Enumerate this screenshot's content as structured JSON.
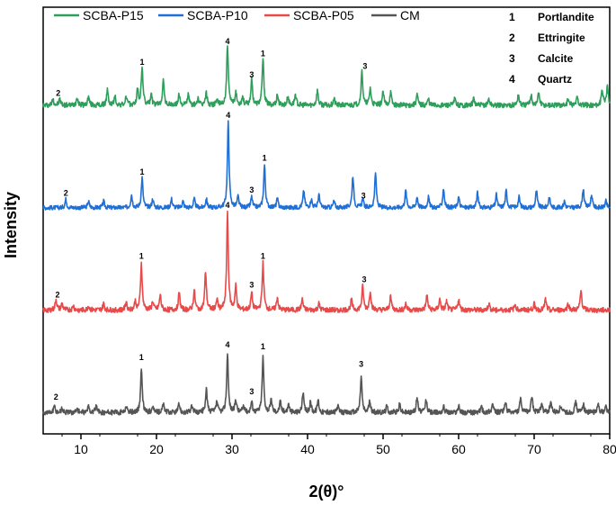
{
  "chart_data": {
    "type": "line",
    "xlabel": "2(θ)°",
    "ylabel": "Intensity",
    "xlim": [
      5,
      80
    ],
    "xticks": [
      10,
      20,
      30,
      40,
      50,
      60,
      70,
      80
    ],
    "ylim": [
      0,
      100
    ],
    "y_tick_labels_shown": false,
    "grid": false,
    "legend_position": "top-left",
    "phase_key": [
      {
        "number": "1",
        "name": "Portlandite"
      },
      {
        "number": "2",
        "name": "Ettringite"
      },
      {
        "number": "3",
        "name": "Calcite"
      },
      {
        "number": "4",
        "name": "Quartz"
      }
    ],
    "series": [
      {
        "name": "SCBA-P15",
        "color": "#2e9e5b",
        "baseline": 77,
        "noise": 0.6,
        "peaks": [
          [
            6.3,
            1.5
          ],
          [
            7.2,
            1.5
          ],
          [
            9.5,
            2.0
          ],
          [
            11.0,
            2.0
          ],
          [
            13.5,
            3.5
          ],
          [
            14.5,
            2.0
          ],
          [
            16.0,
            2.0
          ],
          [
            17.5,
            3.5
          ],
          [
            18.1,
            9.0
          ],
          [
            19.3,
            2.5
          ],
          [
            20.9,
            6.0
          ],
          [
            23.0,
            2.5
          ],
          [
            24.2,
            2.5
          ],
          [
            25.5,
            1.5
          ],
          [
            26.6,
            3.0
          ],
          [
            28.0,
            1.5
          ],
          [
            29.4,
            14.0
          ],
          [
            30.5,
            3.0
          ],
          [
            31.4,
            2.0
          ],
          [
            32.6,
            6.0
          ],
          [
            34.1,
            11.0
          ],
          [
            36.0,
            2.5
          ],
          [
            37.4,
            2.0
          ],
          [
            38.4,
            2.5
          ],
          [
            41.3,
            3.5
          ],
          [
            43.5,
            1.5
          ],
          [
            47.2,
            8.0
          ],
          [
            48.3,
            4.0
          ],
          [
            50.0,
            3.0
          ],
          [
            51.0,
            3.0
          ],
          [
            54.5,
            2.5
          ],
          [
            56.0,
            1.5
          ],
          [
            59.5,
            1.5
          ],
          [
            62.0,
            1.5
          ],
          [
            64.0,
            1.5
          ],
          [
            67.9,
            2.5
          ],
          [
            69.6,
            2.5
          ],
          [
            70.6,
            3.0
          ],
          [
            74.5,
            1.5
          ],
          [
            75.7,
            2.0
          ],
          [
            79.0,
            3.5
          ],
          [
            79.7,
            5.0
          ]
        ],
        "labels": [
          {
            "x": 7.0,
            "y": 79.2,
            "text": "2"
          },
          {
            "x": 18.1,
            "y": 86.5,
            "text": "1"
          },
          {
            "x": 29.4,
            "y": 91.3,
            "text": "4"
          },
          {
            "x": 32.6,
            "y": 83.5,
            "text": "3"
          },
          {
            "x": 34.1,
            "y": 88.5,
            "text": "1"
          },
          {
            "x": 47.6,
            "y": 85.5,
            "text": "3"
          }
        ]
      },
      {
        "name": "SCBA-P10",
        "color": "#1f6fd6",
        "baseline": 53,
        "noise": 0.5,
        "peaks": [
          [
            8.0,
            2.0
          ],
          [
            11.0,
            1.5
          ],
          [
            13.0,
            1.5
          ],
          [
            16.7,
            3.0
          ],
          [
            18.1,
            7.0
          ],
          [
            19.5,
            2.0
          ],
          [
            22.0,
            2.0
          ],
          [
            23.5,
            1.5
          ],
          [
            25.0,
            2.0
          ],
          [
            26.6,
            2.0
          ],
          [
            29.5,
            20.0
          ],
          [
            30.8,
            2.5
          ],
          [
            32.6,
            2.5
          ],
          [
            34.3,
            10.0
          ],
          [
            36.0,
            2.0
          ],
          [
            39.5,
            4.0
          ],
          [
            40.5,
            2.0
          ],
          [
            41.5,
            3.0
          ],
          [
            43.5,
            1.5
          ],
          [
            46.0,
            7.5
          ],
          [
            47.3,
            2.0
          ],
          [
            49.0,
            8.0
          ],
          [
            53.0,
            4.0
          ],
          [
            54.5,
            2.5
          ],
          [
            56.0,
            2.5
          ],
          [
            58.0,
            4.5
          ],
          [
            60.0,
            2.5
          ],
          [
            62.5,
            3.5
          ],
          [
            65.0,
            3.0
          ],
          [
            66.3,
            4.0
          ],
          [
            68.0,
            2.5
          ],
          [
            70.3,
            4.0
          ],
          [
            72.0,
            2.5
          ],
          [
            74.0,
            1.5
          ],
          [
            76.5,
            4.5
          ],
          [
            77.6,
            3.0
          ],
          [
            79.5,
            1.5
          ]
        ],
        "labels": [
          {
            "x": 8.0,
            "y": 55.8,
            "text": "2"
          },
          {
            "x": 18.1,
            "y": 60.8,
            "text": "1"
          },
          {
            "x": 29.5,
            "y": 74.0,
            "text": "4"
          },
          {
            "x": 32.6,
            "y": 56.5,
            "text": "3"
          },
          {
            "x": 34.3,
            "y": 64.0,
            "text": "1"
          },
          {
            "x": 47.4,
            "y": 55.2,
            "text": "3"
          }
        ]
      },
      {
        "name": "SCBA-P05",
        "color": "#e84a4a",
        "baseline": 29,
        "noise": 0.6,
        "peaks": [
          [
            6.7,
            2.5
          ],
          [
            7.5,
            1.5
          ],
          [
            9.0,
            1.0
          ],
          [
            11.0,
            1.0
          ],
          [
            13.0,
            1.5
          ],
          [
            16.0,
            2.0
          ],
          [
            17.2,
            2.0
          ],
          [
            18.0,
            11.0
          ],
          [
            19.5,
            2.0
          ],
          [
            20.5,
            3.5
          ],
          [
            23.0,
            4.0
          ],
          [
            25.0,
            4.5
          ],
          [
            26.5,
            9.0
          ],
          [
            28.0,
            2.5
          ],
          [
            29.4,
            23.0
          ],
          [
            30.5,
            5.5
          ],
          [
            32.6,
            4.0
          ],
          [
            34.1,
            11.0
          ],
          [
            36.0,
            3.0
          ],
          [
            39.3,
            2.5
          ],
          [
            41.5,
            1.5
          ],
          [
            45.8,
            2.5
          ],
          [
            47.3,
            5.5
          ],
          [
            48.3,
            4.5
          ],
          [
            51.0,
            3.5
          ],
          [
            53.0,
            1.5
          ],
          [
            55.8,
            3.5
          ],
          [
            57.5,
            2.5
          ],
          [
            58.4,
            2.0
          ],
          [
            60.0,
            2.5
          ],
          [
            64.0,
            1.5
          ],
          [
            67.5,
            1.5
          ],
          [
            70.0,
            1.5
          ],
          [
            71.5,
            2.5
          ],
          [
            74.5,
            1.5
          ],
          [
            76.2,
            4.5
          ]
        ],
        "labels": [
          {
            "x": 6.9,
            "y": 32.0,
            "text": "2"
          },
          {
            "x": 18.0,
            "y": 41.0,
            "text": "1"
          },
          {
            "x": 29.4,
            "y": 53.0,
            "text": "4"
          },
          {
            "x": 32.6,
            "y": 34.3,
            "text": "3"
          },
          {
            "x": 34.1,
            "y": 41.0,
            "text": "1"
          },
          {
            "x": 47.5,
            "y": 35.5,
            "text": "3"
          }
        ]
      },
      {
        "name": "CM",
        "color": "#555555",
        "baseline": 5,
        "noise": 0.6,
        "peaks": [
          [
            6.5,
            1.5
          ],
          [
            7.5,
            1.0
          ],
          [
            9.5,
            1.0
          ],
          [
            11.0,
            1.5
          ],
          [
            12.0,
            1.5
          ],
          [
            16.0,
            1.5
          ],
          [
            18.0,
            10.0
          ],
          [
            19.5,
            1.5
          ],
          [
            20.9,
            2.0
          ],
          [
            23.0,
            2.0
          ],
          [
            24.7,
            1.5
          ],
          [
            26.6,
            5.5
          ],
          [
            28.0,
            2.5
          ],
          [
            29.4,
            13.5
          ],
          [
            30.5,
            3.0
          ],
          [
            31.5,
            1.5
          ],
          [
            32.6,
            2.5
          ],
          [
            34.1,
            13.0
          ],
          [
            35.2,
            3.0
          ],
          [
            36.4,
            2.5
          ],
          [
            37.5,
            2.0
          ],
          [
            39.4,
            4.5
          ],
          [
            40.4,
            2.5
          ],
          [
            41.4,
            3.0
          ],
          [
            44.0,
            1.5
          ],
          [
            47.1,
            8.5
          ],
          [
            48.2,
            2.5
          ],
          [
            50.5,
            1.5
          ],
          [
            52.2,
            2.0
          ],
          [
            54.5,
            3.5
          ],
          [
            55.7,
            3.0
          ],
          [
            58.0,
            1.5
          ],
          [
            60.0,
            1.5
          ],
          [
            63.0,
            1.5
          ],
          [
            64.5,
            2.0
          ],
          [
            66.2,
            2.5
          ],
          [
            68.2,
            3.0
          ],
          [
            69.7,
            4.0
          ],
          [
            71.0,
            2.0
          ],
          [
            72.2,
            2.5
          ],
          [
            73.5,
            1.5
          ],
          [
            75.5,
            2.5
          ],
          [
            76.5,
            2.0
          ],
          [
            78.5,
            2.0
          ],
          [
            79.5,
            1.5
          ]
        ],
        "labels": [
          {
            "x": 6.7,
            "y": 8.0,
            "text": "2"
          },
          {
            "x": 18.0,
            "y": 17.3,
            "text": "1"
          },
          {
            "x": 29.4,
            "y": 20.3,
            "text": "4"
          },
          {
            "x": 32.6,
            "y": 9.3,
            "text": "3"
          },
          {
            "x": 34.1,
            "y": 19.8,
            "text": "1"
          },
          {
            "x": 47.1,
            "y": 15.7,
            "text": "3"
          }
        ]
      }
    ]
  }
}
